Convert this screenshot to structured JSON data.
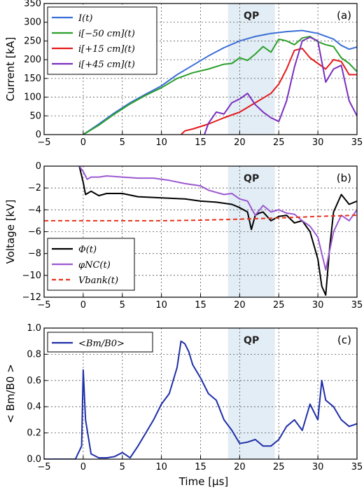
{
  "chart_data": [
    {
      "type": "line",
      "panel_label": "(a)",
      "shaded_region": {
        "label": "QP",
        "x": [
          18.5,
          24.5
        ],
        "color": "#e3edf5"
      },
      "ylabel": "Current [kA]",
      "xlim": [
        -5,
        35
      ],
      "ylim": [
        0,
        350
      ],
      "xticks": [
        -5,
        0,
        5,
        10,
        15,
        20,
        25,
        30,
        35
      ],
      "yticks": [
        0,
        50,
        100,
        150,
        200,
        250,
        300,
        350
      ],
      "grid": true,
      "legend": "top-left",
      "series": [
        {
          "name": "I(t)",
          "color": "#3b6fd6",
          "x": [
            0,
            2,
            4,
            6,
            8,
            10,
            12,
            14,
            16,
            18,
            20,
            22,
            24,
            26,
            28,
            30,
            32,
            33,
            34,
            35
          ],
          "y": [
            0,
            28,
            58,
            85,
            108,
            130,
            160,
            185,
            210,
            232,
            250,
            262,
            270,
            275,
            278,
            270,
            255,
            238,
            228,
            234
          ]
        },
        {
          "name": "i[−50 cm](t)",
          "color": "#2ca02c",
          "x": [
            0,
            2,
            4,
            6,
            8,
            10,
            12,
            14,
            16,
            18,
            19,
            20,
            21,
            22,
            23,
            24,
            25,
            26,
            27,
            28,
            29,
            30,
            31,
            32,
            33,
            34,
            35
          ],
          "y": [
            0,
            25,
            55,
            82,
            105,
            125,
            150,
            165,
            175,
            188,
            190,
            205,
            198,
            215,
            235,
            220,
            255,
            250,
            240,
            258,
            262,
            248,
            240,
            235,
            205,
            190,
            168
          ]
        },
        {
          "name": "i[+15 cm](t)",
          "color": "#e31a1c",
          "x": [
            12.5,
            13,
            14,
            16,
            18,
            20,
            22,
            24,
            25,
            26,
            27,
            28,
            29,
            30,
            31,
            32,
            33,
            34,
            35
          ],
          "y": [
            0,
            10,
            15,
            28,
            45,
            60,
            85,
            110,
            135,
            175,
            225,
            230,
            205,
            190,
            175,
            200,
            195,
            160,
            160
          ]
        },
        {
          "name": "i[+45 cm](t)",
          "color": "#7b2fbe",
          "x": [
            15.5,
            16,
            17,
            18,
            19,
            20,
            21,
            22,
            23,
            24,
            25,
            26,
            27,
            28,
            29,
            30,
            31,
            32,
            33,
            34,
            35
          ],
          "y": [
            0,
            30,
            60,
            55,
            85,
            95,
            110,
            80,
            60,
            45,
            35,
            90,
            180,
            250,
            260,
            250,
            140,
            175,
            185,
            90,
            50
          ]
        }
      ]
    },
    {
      "type": "line",
      "panel_label": "(b)",
      "shaded_region": {
        "label": "QP",
        "x": [
          18.5,
          24.5
        ],
        "color": "#e3edf5"
      },
      "ylabel": "Voltage [kV]",
      "xlim": [
        -5,
        35
      ],
      "ylim": [
        -12,
        0
      ],
      "xticks": [
        -5,
        0,
        5,
        10,
        15,
        20,
        25,
        30,
        35
      ],
      "yticks": [
        -12,
        -10,
        -8,
        -6,
        -4,
        -2,
        0
      ],
      "grid": true,
      "legend": "bottom-left",
      "series": [
        {
          "name": "Φ(t)",
          "color": "#000000",
          "x": [
            -0.5,
            0,
            0.3,
            1,
            2,
            3,
            5,
            7,
            10,
            13,
            15,
            17,
            19,
            20,
            21,
            21.5,
            22,
            22.5,
            23,
            24,
            25,
            26,
            27,
            28,
            29,
            30,
            30.5,
            31,
            31.5,
            32,
            33,
            34,
            35
          ],
          "y": [
            0,
            -1.5,
            -2.6,
            -2.3,
            -2.7,
            -2.5,
            -2.5,
            -2.8,
            -2.9,
            -3.0,
            -3.2,
            -3.3,
            -3.5,
            -3.8,
            -4.2,
            -5.8,
            -4.5,
            -4.3,
            -4.2,
            -5.0,
            -4.6,
            -4.5,
            -5.2,
            -5.0,
            -6.0,
            -8.5,
            -11.0,
            -11.8,
            -7.5,
            -4.2,
            -2.6,
            -3.5,
            -3.2
          ]
        },
        {
          "name": "φNC(t)",
          "color": "#9b59d0",
          "x": [
            -0.5,
            0,
            0.5,
            1,
            2,
            3,
            5,
            7,
            9,
            11,
            13,
            15,
            16,
            18,
            19,
            20,
            21,
            22,
            23,
            24,
            25,
            26,
            27,
            28,
            29,
            30,
            31,
            32,
            33,
            34,
            35
          ],
          "y": [
            0,
            -0.5,
            -1.2,
            -1.0,
            -1.0,
            -0.9,
            -1.0,
            -1.1,
            -1.1,
            -1.3,
            -1.6,
            -1.8,
            -2.2,
            -2.6,
            -2.5,
            -3.0,
            -3.2,
            -4.5,
            -3.6,
            -4.2,
            -4.0,
            -4.3,
            -4.4,
            -5.0,
            -5.5,
            -6.5,
            -9.5,
            -6.0,
            -4.5,
            -5.0,
            -4.0
          ]
        },
        {
          "name": "Vbank(t)",
          "color": "#e8321c",
          "dashed": true,
          "x": [
            -5,
            0,
            5,
            10,
            15,
            20,
            25,
            30,
            35
          ],
          "y": [
            -5.0,
            -5.0,
            -5.0,
            -5.0,
            -4.95,
            -4.85,
            -4.75,
            -4.6,
            -4.5
          ]
        }
      ]
    },
    {
      "type": "line",
      "panel_label": "(c)",
      "shaded_region": {
        "label": "QP",
        "x": [
          18.5,
          24.5
        ],
        "color": "#e3edf5"
      },
      "xlabel": "Time [μs]",
      "ylabel": "< Bm/B0 >",
      "xlim": [
        -5,
        35
      ],
      "ylim": [
        0,
        1.0
      ],
      "xticks": [
        -5,
        0,
        5,
        10,
        15,
        20,
        25,
        30,
        35
      ],
      "yticks": [
        0.0,
        0.2,
        0.4,
        0.6,
        0.8,
        1.0
      ],
      "grid": true,
      "legend": "top-left",
      "series": [
        {
          "name": "<Bm/B0>",
          "color": "#1f2fa8",
          "x": [
            -5,
            -1,
            -0.2,
            0,
            0.3,
            1,
            2,
            3,
            4,
            5,
            6,
            7,
            8,
            9,
            10,
            11,
            12,
            12.5,
            13,
            13.5,
            14,
            15,
            16,
            17,
            18,
            19,
            20,
            21,
            22,
            23,
            24,
            25,
            26,
            27,
            28,
            29,
            30,
            30.5,
            31,
            32,
            33,
            34,
            35
          ],
          "y": [
            0.0,
            0.0,
            0.1,
            0.68,
            0.3,
            0.04,
            0.01,
            0.01,
            0.02,
            0.05,
            0.01,
            0.1,
            0.2,
            0.3,
            0.42,
            0.5,
            0.7,
            0.9,
            0.88,
            0.82,
            0.72,
            0.62,
            0.5,
            0.45,
            0.3,
            0.22,
            0.12,
            0.13,
            0.15,
            0.1,
            0.1,
            0.15,
            0.25,
            0.3,
            0.22,
            0.42,
            0.3,
            0.6,
            0.45,
            0.4,
            0.3,
            0.25,
            0.27
          ]
        }
      ]
    }
  ],
  "legend_display": [
    [
      "I(t)",
      "i[−50 cm](t)",
      "i[+15 cm](t)",
      "i[+45 cm](t)"
    ],
    [
      "Φ(t)",
      "φNC(t)",
      "Vbank(t)"
    ],
    [
      "<Bm/B0>"
    ]
  ]
}
